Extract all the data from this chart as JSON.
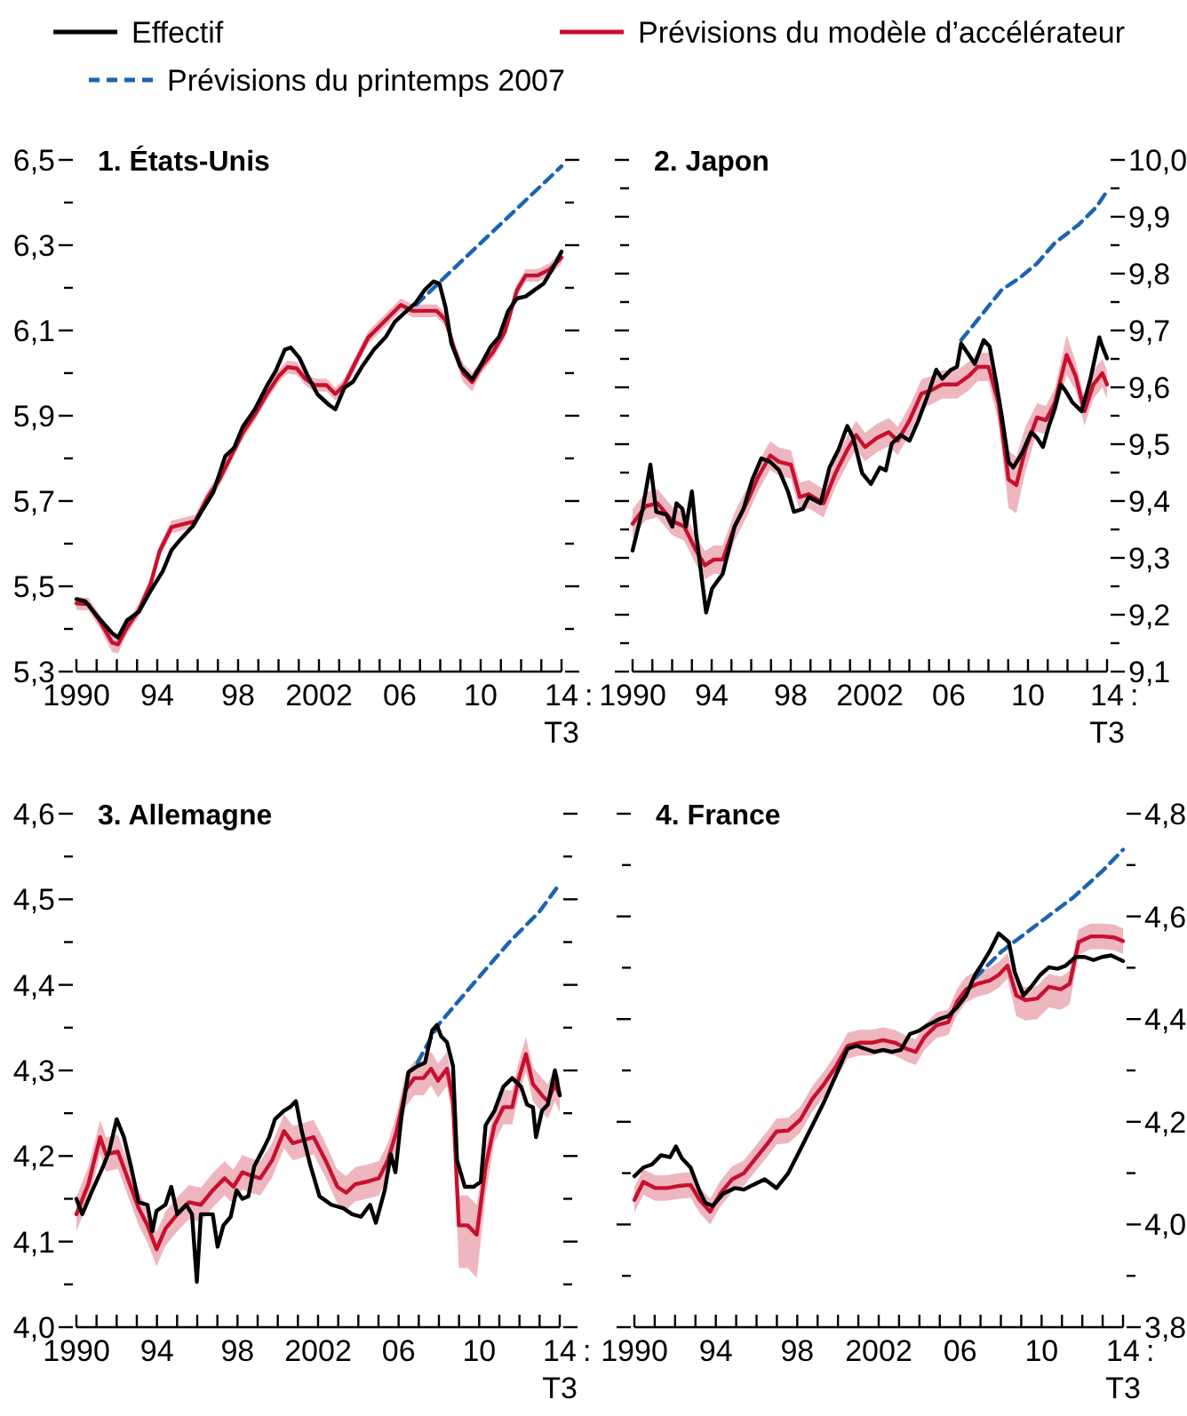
{
  "chart_data": [
    {
      "type": "line",
      "title": "1. États-Unis",
      "legend": "top",
      "annotations": [
        "T3",
        ":"
      ],
      "xlim": [
        1990,
        2014
      ],
      "xticks": [
        {
          "value": 1990,
          "label": "1990"
        },
        {
          "value": 1991,
          "label": null
        },
        {
          "value": 1992,
          "label": null
        },
        {
          "value": 1993,
          "label": null
        },
        {
          "value": 1994,
          "label": "94"
        },
        {
          "value": 1995,
          "label": null
        },
        {
          "value": 1996,
          "label": null
        },
        {
          "value": 1997,
          "label": null
        },
        {
          "value": 1998,
          "label": "98"
        },
        {
          "value": 1999,
          "label": null
        },
        {
          "value": 2000,
          "label": null
        },
        {
          "value": 2001,
          "label": null
        },
        {
          "value": 2002,
          "label": "2002"
        },
        {
          "value": 2003,
          "label": null
        },
        {
          "value": 2004,
          "label": null
        },
        {
          "value": 2005,
          "label": null
        },
        {
          "value": 2006,
          "label": "06"
        },
        {
          "value": 2007,
          "label": null
        },
        {
          "value": 2008,
          "label": null
        },
        {
          "value": 2009,
          "label": null
        },
        {
          "value": 2010,
          "label": "10"
        },
        {
          "value": 2011,
          "label": null
        },
        {
          "value": 2012,
          "label": null
        },
        {
          "value": 2013,
          "label": null
        },
        {
          "value": 2014,
          "label": "14"
        }
      ],
      "ylim": [
        5.3,
        6.5
      ],
      "yticks": [
        {
          "value": 5.3,
          "label": "5,3"
        },
        {
          "value": 5.4,
          "label": null
        },
        {
          "value": 5.5,
          "label": "5,5"
        },
        {
          "value": 5.6,
          "label": null
        },
        {
          "value": 5.7,
          "label": "5,7"
        },
        {
          "value": 5.8,
          "label": null
        },
        {
          "value": 5.9,
          "label": "5,9"
        },
        {
          "value": 6.0,
          "label": null
        },
        {
          "value": 6.1,
          "label": "6,1"
        },
        {
          "value": 6.2,
          "label": null
        },
        {
          "value": 6.3,
          "label": "6,3"
        },
        {
          "value": 6.4,
          "label": null
        },
        {
          "value": 6.5,
          "label": "6,5"
        }
      ],
      "series": [
        {
          "name": "Effectif",
          "color": "#000000",
          "line_style": "solid",
          "x": [
            1990,
            1990.44,
            1991.03,
            1991.77,
            1992.06,
            1992.5,
            1993.09,
            1993.68,
            1994.27,
            1994.71,
            1995.15,
            1995.74,
            1996.18,
            1996.77,
            1997.36,
            1997.8,
            1998.24,
            1998.83,
            1999.42,
            1999.86,
            2000.31,
            2000.6,
            2001.04,
            2001.48,
            2001.93,
            2002.51,
            2002.81,
            2003.25,
            2003.69,
            2004.13,
            2004.72,
            2005.31,
            2005.75,
            2006.2,
            2006.79,
            2007.23,
            2007.67,
            2007.96,
            2008.26,
            2008.55,
            2008.99,
            2009.58,
            2010.02,
            2010.47,
            2010.91,
            2011.35,
            2011.79,
            2012.23,
            2012.67,
            2013.12,
            2013.56,
            2014
          ],
          "values": [
            5.47,
            5.465,
            5.43,
            5.39,
            5.38,
            5.42,
            5.44,
            5.49,
            5.535,
            5.585,
            5.61,
            5.64,
            5.675,
            5.72,
            5.805,
            5.825,
            5.875,
            5.915,
            5.97,
            6.005,
            6.055,
            6.06,
            6.035,
            5.99,
            5.95,
            5.925,
            5.915,
            5.965,
            5.98,
            6.015,
            6.055,
            6.085,
            6.12,
            6.14,
            6.165,
            6.195,
            6.215,
            6.21,
            6.155,
            6.07,
            6.015,
            5.985,
            6.02,
            6.06,
            6.085,
            6.145,
            6.175,
            6.18,
            6.195,
            6.21,
            6.245,
            6.285
          ]
        },
        {
          "name": "Prévisions du modèle d’accélérateur",
          "color": "#c8102e",
          "line_style": "solid",
          "x": [
            1990,
            1990.59,
            1991.18,
            1991.77,
            1992.06,
            1992.5,
            1993.09,
            1993.68,
            1994.12,
            1994.71,
            1995.3,
            1995.89,
            1996.48,
            1997.07,
            1997.66,
            1998.24,
            1998.83,
            1999.42,
            2000.01,
            2000.45,
            2000.9,
            2001.34,
            2001.78,
            2002.37,
            2002.81,
            2003.25,
            2003.84,
            2004.43,
            2005.02,
            2005.61,
            2006.05,
            2006.64,
            2007.23,
            2007.82,
            2008.26,
            2008.7,
            2009.14,
            2009.58,
            2010.02,
            2010.61,
            2011.2,
            2011.79,
            2012.23,
            2012.82,
            2013.41,
            2014
          ],
          "values": [
            5.46,
            5.458,
            5.417,
            5.368,
            5.364,
            5.403,
            5.444,
            5.507,
            5.583,
            5.639,
            5.646,
            5.653,
            5.708,
            5.75,
            5.806,
            5.861,
            5.903,
            5.951,
            5.993,
            6.014,
            6.011,
            5.986,
            5.972,
            5.972,
            5.951,
            5.972,
            6.028,
            6.083,
            6.111,
            6.139,
            6.16,
            6.146,
            6.146,
            6.146,
            6.125,
            6.056,
            6.0,
            5.979,
            6.014,
            6.049,
            6.097,
            6.194,
            6.229,
            6.229,
            6.243,
            6.271
          ],
          "lower": [
            5.445,
            5.443,
            5.4,
            5.346,
            5.342,
            5.388,
            5.429,
            5.492,
            5.568,
            5.624,
            5.631,
            5.638,
            5.693,
            5.735,
            5.791,
            5.846,
            5.888,
            5.936,
            5.978,
            5.999,
            5.996,
            5.971,
            5.957,
            5.957,
            5.936,
            5.957,
            6.013,
            6.068,
            6.096,
            6.124,
            6.145,
            6.131,
            6.131,
            6.131,
            6.11,
            6.041,
            5.978,
            5.957,
            5.999,
            6.034,
            6.082,
            6.179,
            6.214,
            6.214,
            6.228,
            6.256
          ],
          "upper": [
            5.475,
            5.473,
            5.432,
            5.39,
            5.386,
            5.418,
            5.459,
            5.522,
            5.598,
            5.654,
            5.661,
            5.668,
            5.723,
            5.765,
            5.821,
            5.876,
            5.918,
            5.966,
            6.008,
            6.029,
            6.026,
            6.001,
            5.987,
            5.987,
            5.966,
            5.987,
            6.043,
            6.098,
            6.126,
            6.154,
            6.175,
            6.161,
            6.161,
            6.161,
            6.14,
            6.071,
            6.022,
            6.001,
            6.029,
            6.064,
            6.112,
            6.209,
            6.244,
            6.244,
            6.258,
            6.286
          ]
        },
        {
          "name": "Prévisions du printemps 2007",
          "color": "#1a64b4",
          "line_style": "dashed",
          "x": [
            2006.8,
            2009,
            2011,
            2013,
            2014
          ],
          "values": [
            6.16,
            6.26,
            6.35,
            6.44,
            6.485
          ]
        }
      ]
    },
    {
      "type": "line",
      "title": "2. Japon",
      "annotations": [
        "T3",
        ":"
      ],
      "xlim": [
        1990,
        2014
      ],
      "xticks": [
        {
          "value": 1990,
          "label": "1990"
        },
        {
          "value": 1991,
          "label": null
        },
        {
          "value": 1992,
          "label": null
        },
        {
          "value": 1993,
          "label": null
        },
        {
          "value": 1994,
          "label": "94"
        },
        {
          "value": 1995,
          "label": null
        },
        {
          "value": 1996,
          "label": null
        },
        {
          "value": 1997,
          "label": null
        },
        {
          "value": 1998,
          "label": "98"
        },
        {
          "value": 1999,
          "label": null
        },
        {
          "value": 2000,
          "label": null
        },
        {
          "value": 2001,
          "label": null
        },
        {
          "value": 2002,
          "label": "2002"
        },
        {
          "value": 2003,
          "label": null
        },
        {
          "value": 2004,
          "label": null
        },
        {
          "value": 2005,
          "label": null
        },
        {
          "value": 2006,
          "label": "06"
        },
        {
          "value": 2007,
          "label": null
        },
        {
          "value": 2008,
          "label": null
        },
        {
          "value": 2009,
          "label": null
        },
        {
          "value": 2010,
          "label": "10"
        },
        {
          "value": 2011,
          "label": null
        },
        {
          "value": 2012,
          "label": null
        },
        {
          "value": 2013,
          "label": null
        },
        {
          "value": 2014,
          "label": "14"
        }
      ],
      "y2lim": [
        9.1,
        10.0
      ],
      "y2ticks": [
        {
          "value": 9.1,
          "label": "9,1"
        },
        {
          "value": 9.15,
          "label": null
        },
        {
          "value": 9.2,
          "label": "9,2"
        },
        {
          "value": 9.25,
          "label": null
        },
        {
          "value": 9.3,
          "label": "9,3"
        },
        {
          "value": 9.35,
          "label": null
        },
        {
          "value": 9.4,
          "label": "9,4"
        },
        {
          "value": 9.45,
          "label": null
        },
        {
          "value": 9.5,
          "label": "9,5"
        },
        {
          "value": 9.55,
          "label": null
        },
        {
          "value": 9.6,
          "label": "9,6"
        },
        {
          "value": 9.65,
          "label": null
        },
        {
          "value": 9.7,
          "label": "9,7"
        },
        {
          "value": 9.75,
          "label": null
        },
        {
          "value": 9.8,
          "label": "9,8"
        },
        {
          "value": 9.85,
          "label": null
        },
        {
          "value": 9.9,
          "label": "9,9"
        },
        {
          "value": 9.95,
          "label": null
        },
        {
          "value": 10.0,
          "label": "10,0"
        }
      ],
      "series": [
        {
          "color": "#000000",
          "axis": "y2",
          "line_style": "solid",
          "x": [
            1990,
            1990.51,
            1990.9,
            1991.2,
            1991.71,
            1992.01,
            1992.22,
            1992.52,
            1992.7,
            1993.0,
            1993.21,
            1993.51,
            1993.72,
            1994.02,
            1994.56,
            1995.16,
            1995.61,
            1996.06,
            1996.51,
            1996.96,
            1997.41,
            1997.86,
            1998.16,
            1998.61,
            1998.91,
            1999.51,
            1999.96,
            2000.41,
            2000.86,
            2001.16,
            2001.61,
            2002.06,
            2002.51,
            2002.81,
            2003.11,
            2003.56,
            2004.01,
            2004.46,
            2004.91,
            2005.36,
            2005.66,
            2006.11,
            2006.41,
            2006.62,
            2007.01,
            2007.31,
            2007.76,
            2008.06,
            2008.36,
            2008.66,
            2009.02,
            2009.26,
            2009.71,
            2010.16,
            2010.46,
            2010.76,
            2011.06,
            2011.36,
            2011.66,
            2011.9,
            2012.26,
            2012.71,
            2013.16,
            2013.61,
            2013.76,
            2014
          ],
          "values": [
            9.313,
            9.386,
            9.464,
            9.381,
            9.376,
            9.355,
            9.396,
            9.386,
            9.355,
            9.417,
            9.344,
            9.261,
            9.204,
            9.246,
            9.272,
            9.355,
            9.386,
            9.438,
            9.475,
            9.469,
            9.454,
            9.417,
            9.381,
            9.386,
            9.407,
            9.396,
            9.459,
            9.49,
            9.532,
            9.511,
            9.449,
            9.43,
            9.459,
            9.454,
            9.501,
            9.516,
            9.506,
            9.542,
            9.584,
            9.631,
            9.615,
            9.631,
            9.636,
            9.677,
            9.657,
            9.641,
            9.683,
            9.672,
            9.615,
            9.553,
            9.469,
            9.459,
            9.485,
            9.521,
            9.511,
            9.495,
            9.532,
            9.563,
            9.605,
            9.594,
            9.573,
            9.558,
            9.615,
            9.688,
            9.672,
            9.651
          ]
        },
        {
          "color": "#c8102e",
          "axis": "y2",
          "line_style": "solid",
          "x": [
            1990,
            1990.66,
            1991.26,
            1992.01,
            1992.61,
            1993.21,
            1993.66,
            1994.11,
            1994.56,
            1995.16,
            1995.76,
            1996.36,
            1996.96,
            1997.41,
            1998.01,
            1998.46,
            1998.91,
            1999.66,
            2000.26,
            2000.86,
            2001.31,
            2001.76,
            2002.36,
            2002.96,
            2003.41,
            2004.01,
            2004.61,
            2005.06,
            2005.66,
            2006.41,
            2007.01,
            2007.46,
            2008.0,
            2008.51,
            2009.02,
            2009.41,
            2009.86,
            2010.46,
            2010.91,
            2011.36,
            2011.96,
            2012.41,
            2012.86,
            2013.31,
            2013.76,
            2014
          ],
          "values": [
            9.36,
            9.391,
            9.396,
            9.365,
            9.355,
            9.313,
            9.287,
            9.297,
            9.297,
            9.355,
            9.396,
            9.443,
            9.48,
            9.469,
            9.464,
            9.407,
            9.412,
            9.396,
            9.449,
            9.49,
            9.516,
            9.495,
            9.511,
            9.521,
            9.506,
            9.542,
            9.589,
            9.594,
            9.605,
            9.605,
            9.62,
            9.636,
            9.636,
            9.573,
            9.438,
            9.428,
            9.49,
            9.547,
            9.542,
            9.573,
            9.657,
            9.62,
            9.558,
            9.605,
            9.625,
            9.605
          ],
          "lower": [
            9.335,
            9.366,
            9.371,
            9.34,
            9.33,
            9.288,
            9.262,
            9.272,
            9.272,
            9.33,
            9.371,
            9.418,
            9.455,
            9.444,
            9.439,
            9.382,
            9.387,
            9.371,
            9.424,
            9.465,
            9.491,
            9.47,
            9.486,
            9.496,
            9.481,
            9.517,
            9.564,
            9.569,
            9.58,
            9.58,
            9.595,
            9.611,
            9.611,
            9.538,
            9.388,
            9.378,
            9.45,
            9.522,
            9.517,
            9.548,
            9.622,
            9.595,
            9.533,
            9.58,
            9.6,
            9.58
          ],
          "upper": [
            9.385,
            9.416,
            9.421,
            9.39,
            9.38,
            9.338,
            9.312,
            9.322,
            9.322,
            9.38,
            9.421,
            9.468,
            9.505,
            9.494,
            9.489,
            9.432,
            9.437,
            9.421,
            9.474,
            9.515,
            9.541,
            9.52,
            9.536,
            9.546,
            9.531,
            9.567,
            9.614,
            9.619,
            9.63,
            9.63,
            9.645,
            9.661,
            9.661,
            9.608,
            9.488,
            9.478,
            9.53,
            9.572,
            9.567,
            9.598,
            9.692,
            9.645,
            9.583,
            9.63,
            9.65,
            9.63
          ]
        },
        {
          "color": "#1a64b4",
          "axis": "y2",
          "line_style": "dashed",
          "x": [
            2006.62,
            2007.46,
            2008.66,
            2009.56,
            2010.46,
            2011.36,
            2012.56,
            2013.46,
            2014
          ],
          "values": [
            9.683,
            9.719,
            9.771,
            9.792,
            9.818,
            9.854,
            9.886,
            9.917,
            9.945
          ]
        }
      ]
    },
    {
      "type": "line",
      "title": "3. Allemagne",
      "annotations": [
        "T3",
        ":"
      ],
      "xlim": [
        1990,
        2014
      ],
      "xticks": [
        {
          "value": 1990,
          "label": "1990"
        },
        {
          "value": 1991,
          "label": null
        },
        {
          "value": 1992,
          "label": null
        },
        {
          "value": 1993,
          "label": null
        },
        {
          "value": 1994,
          "label": "94"
        },
        {
          "value": 1995,
          "label": null
        },
        {
          "value": 1996,
          "label": null
        },
        {
          "value": 1997,
          "label": null
        },
        {
          "value": 1998,
          "label": "98"
        },
        {
          "value": 1999,
          "label": null
        },
        {
          "value": 2000,
          "label": null
        },
        {
          "value": 2001,
          "label": null
        },
        {
          "value": 2002,
          "label": "2002"
        },
        {
          "value": 2003,
          "label": null
        },
        {
          "value": 2004,
          "label": null
        },
        {
          "value": 2005,
          "label": null
        },
        {
          "value": 2006,
          "label": "06"
        },
        {
          "value": 2007,
          "label": null
        },
        {
          "value": 2008,
          "label": null
        },
        {
          "value": 2009,
          "label": null
        },
        {
          "value": 2010,
          "label": "10"
        },
        {
          "value": 2011,
          "label": null
        },
        {
          "value": 2012,
          "label": null
        },
        {
          "value": 2013,
          "label": null
        },
        {
          "value": 2014,
          "label": "14"
        }
      ],
      "ylim": [
        4.0,
        4.6
      ],
      "yticks": [
        {
          "value": 4.0,
          "label": "4,0"
        },
        {
          "value": 4.05,
          "label": null
        },
        {
          "value": 4.1,
          "label": "4,1"
        },
        {
          "value": 4.15,
          "label": null
        },
        {
          "value": 4.2,
          "label": "4,2"
        },
        {
          "value": 4.25,
          "label": null
        },
        {
          "value": 4.3,
          "label": "4,3"
        },
        {
          "value": 4.35,
          "label": null
        },
        {
          "value": 4.4,
          "label": "4,4"
        },
        {
          "value": 4.45,
          "label": null
        },
        {
          "value": 4.5,
          "label": "4,5"
        },
        {
          "value": 4.55,
          "label": null
        },
        {
          "value": 4.6,
          "label": "4,6"
        }
      ],
      "series": [
        {
          "color": "#000000",
          "line_style": "solid",
          "x": [
            1990,
            1990.29,
            1990.74,
            1991.33,
            1991.62,
            1992.0,
            1992.36,
            1992.71,
            1993.09,
            1993.53,
            1993.77,
            1993.98,
            1994.42,
            1994.71,
            1995.01,
            1995.45,
            1995.74,
            1995.98,
            1996.18,
            1996.77,
            1997.01,
            1997.3,
            1997.66,
            1997.95,
            1998.24,
            1998.54,
            1998.83,
            1999.28,
            1999.57,
            1999.86,
            2000.31,
            2000.6,
            2000.9,
            2001.19,
            2001.63,
            2002.07,
            2002.66,
            2003.25,
            2003.69,
            2004.13,
            2004.58,
            2004.87,
            2005.31,
            2005.61,
            2005.84,
            2006.14,
            2006.49,
            2006.93,
            2007.31,
            2007.67,
            2007.9,
            2008.11,
            2008.4,
            2008.7,
            2008.9,
            2009.29,
            2009.73,
            2010.08,
            2010.32,
            2010.76,
            2011.2,
            2011.64,
            2012.08,
            2012.38,
            2012.67,
            2012.82,
            2013.12,
            2013.41,
            2013.76,
            2014
          ],
          "values": [
            4.15,
            4.132,
            4.157,
            4.188,
            4.205,
            4.243,
            4.222,
            4.188,
            4.146,
            4.143,
            4.112,
            4.136,
            4.143,
            4.164,
            4.132,
            4.143,
            4.132,
            4.053,
            4.132,
            4.132,
            4.094,
            4.119,
            4.129,
            4.16,
            4.15,
            4.153,
            4.188,
            4.208,
            4.222,
            4.243,
            4.253,
            4.257,
            4.264,
            4.229,
            4.188,
            4.153,
            4.143,
            4.139,
            4.132,
            4.129,
            4.143,
            4.122,
            4.16,
            4.202,
            4.181,
            4.246,
            4.298,
            4.305,
            4.309,
            4.347,
            4.353,
            4.34,
            4.333,
            4.305,
            4.195,
            4.164,
            4.164,
            4.17,
            4.236,
            4.253,
            4.281,
            4.291,
            4.281,
            4.26,
            4.257,
            4.222,
            4.253,
            4.26,
            4.3,
            4.271
          ]
        },
        {
          "color": "#c8102e",
          "line_style": "solid",
          "x": [
            1990,
            1990.59,
            1991.18,
            1991.47,
            1992.06,
            1992.5,
            1993.09,
            1993.53,
            1993.98,
            1994.42,
            1995.01,
            1995.59,
            1996.18,
            1996.77,
            1997.36,
            1997.8,
            1998.24,
            1998.69,
            1999.13,
            1999.72,
            2000.31,
            2000.75,
            2001.19,
            2001.78,
            2002.37,
            2002.96,
            2003.4,
            2003.84,
            2004.43,
            2005.02,
            2005.46,
            2005.9,
            2006.34,
            2006.78,
            2007.23,
            2007.61,
            2007.96,
            2008.4,
            2008.7,
            2008.99,
            2009.43,
            2009.88,
            2010.32,
            2010.76,
            2011.2,
            2011.64,
            2011.94,
            2012.32,
            2012.67,
            2013.12,
            2013.41,
            2013.76,
            2014
          ],
          "values": [
            4.132,
            4.167,
            4.222,
            4.202,
            4.205,
            4.177,
            4.139,
            4.119,
            4.091,
            4.115,
            4.132,
            4.146,
            4.143,
            4.16,
            4.174,
            4.164,
            4.181,
            4.177,
            4.174,
            4.195,
            4.229,
            4.215,
            4.218,
            4.222,
            4.195,
            4.164,
            4.157,
            4.167,
            4.17,
            4.174,
            4.195,
            4.229,
            4.277,
            4.291,
            4.291,
            4.302,
            4.288,
            4.302,
            4.264,
            4.119,
            4.119,
            4.108,
            4.188,
            4.236,
            4.257,
            4.257,
            4.288,
            4.319,
            4.284,
            4.271,
            4.264,
            4.284,
            4.271
          ],
          "lower": [
            4.112,
            4.147,
            4.202,
            4.182,
            4.185,
            4.157,
            4.119,
            4.099,
            4.071,
            4.095,
            4.112,
            4.126,
            4.123,
            4.14,
            4.154,
            4.144,
            4.161,
            4.157,
            4.154,
            4.175,
            4.209,
            4.195,
            4.198,
            4.202,
            4.175,
            4.144,
            4.137,
            4.147,
            4.15,
            4.154,
            4.175,
            4.209,
            4.257,
            4.271,
            4.271,
            4.282,
            4.268,
            4.282,
            4.239,
            4.069,
            4.069,
            4.058,
            4.153,
            4.216,
            4.237,
            4.237,
            4.268,
            4.299,
            4.264,
            4.251,
            4.244,
            4.264,
            4.251
          ],
          "upper": [
            4.152,
            4.187,
            4.242,
            4.222,
            4.225,
            4.197,
            4.159,
            4.139,
            4.111,
            4.135,
            4.152,
            4.166,
            4.163,
            4.18,
            4.194,
            4.184,
            4.201,
            4.197,
            4.194,
            4.215,
            4.249,
            4.235,
            4.238,
            4.242,
            4.215,
            4.184,
            4.177,
            4.187,
            4.19,
            4.194,
            4.215,
            4.249,
            4.297,
            4.311,
            4.311,
            4.322,
            4.308,
            4.322,
            4.284,
            4.154,
            4.154,
            4.143,
            4.208,
            4.256,
            4.277,
            4.277,
            4.308,
            4.339,
            4.304,
            4.291,
            4.284,
            4.304,
            4.291
          ]
        },
        {
          "color": "#1a64b4",
          "line_style": "dashed",
          "x": [
            2006.93,
            2007.96,
            2009.73,
            2011.5,
            2012.97,
            2014
          ],
          "values": [
            4.309,
            4.353,
            4.402,
            4.45,
            4.485,
            4.518
          ]
        }
      ]
    },
    {
      "type": "line",
      "title": "4. France",
      "annotations": [
        "T3",
        ":"
      ],
      "xlim": [
        1990,
        2014
      ],
      "xticks": [
        {
          "value": 1990,
          "label": "1990"
        },
        {
          "value": 1991,
          "label": null
        },
        {
          "value": 1992,
          "label": null
        },
        {
          "value": 1993,
          "label": null
        },
        {
          "value": 1994,
          "label": "94"
        },
        {
          "value": 1995,
          "label": null
        },
        {
          "value": 1996,
          "label": null
        },
        {
          "value": 1997,
          "label": null
        },
        {
          "value": 1998,
          "label": "98"
        },
        {
          "value": 1999,
          "label": null
        },
        {
          "value": 2000,
          "label": null
        },
        {
          "value": 2001,
          "label": null
        },
        {
          "value": 2002,
          "label": "2002"
        },
        {
          "value": 2003,
          "label": null
        },
        {
          "value": 2004,
          "label": null
        },
        {
          "value": 2005,
          "label": null
        },
        {
          "value": 2006,
          "label": "06"
        },
        {
          "value": 2007,
          "label": null
        },
        {
          "value": 2008,
          "label": null
        },
        {
          "value": 2009,
          "label": null
        },
        {
          "value": 2010,
          "label": "10"
        },
        {
          "value": 2011,
          "label": null
        },
        {
          "value": 2012,
          "label": null
        },
        {
          "value": 2013,
          "label": null
        },
        {
          "value": 2014,
          "label": "14"
        }
      ],
      "y2lim": [
        3.8,
        4.8
      ],
      "y2ticks": [
        {
          "value": 3.8,
          "label": "3,8"
        },
        {
          "value": 3.9,
          "label": null
        },
        {
          "value": 4.0,
          "label": "4,0"
        },
        {
          "value": 4.1,
          "label": null
        },
        {
          "value": 4.2,
          "label": "4,2"
        },
        {
          "value": 4.3,
          "label": null
        },
        {
          "value": 4.4,
          "label": "4,4"
        },
        {
          "value": 4.5,
          "label": null
        },
        {
          "value": 4.6,
          "label": "4,6"
        },
        {
          "value": 4.7,
          "label": null
        },
        {
          "value": 4.8,
          "label": "4,8"
        }
      ],
      "series": [
        {
          "color": "#000000",
          "axis": "y2",
          "line_style": "solid",
          "x": [
            1990,
            1990.44,
            1990.87,
            1991.31,
            1991.75,
            1992.04,
            1992.33,
            1992.76,
            1993.2,
            1993.49,
            1993.84,
            1994.36,
            1994.95,
            1995.38,
            1995.82,
            1996.4,
            1996.98,
            1997.56,
            1998.15,
            1998.73,
            1999.31,
            1999.89,
            2000.47,
            2000.91,
            2001.35,
            2001.78,
            2002.22,
            2002.65,
            2003.09,
            2003.53,
            2003.96,
            2004.4,
            2004.98,
            2005.42,
            2005.85,
            2006.29,
            2006.73,
            2007.02,
            2007.45,
            2007.89,
            2008.39,
            2008.68,
            2009.11,
            2009.49,
            2009.93,
            2010.36,
            2010.8,
            2011.18,
            2011.67,
            2012.11,
            2012.55,
            2012.98,
            2013.42,
            2014
          ],
          "values": [
            4.094,
            4.111,
            4.117,
            4.135,
            4.131,
            4.152,
            4.129,
            4.111,
            4.065,
            4.042,
            4.036,
            4.06,
            4.071,
            4.068,
            4.077,
            4.088,
            4.071,
            4.1,
            4.146,
            4.192,
            4.238,
            4.29,
            4.342,
            4.348,
            4.342,
            4.336,
            4.34,
            4.336,
            4.34,
            4.371,
            4.377,
            4.388,
            4.4,
            4.406,
            4.423,
            4.446,
            4.486,
            4.504,
            4.532,
            4.567,
            4.55,
            4.492,
            4.446,
            4.463,
            4.486,
            4.501,
            4.498,
            4.504,
            4.521,
            4.521,
            4.515,
            4.521,
            4.524,
            4.513
          ]
        },
        {
          "color": "#c8102e",
          "axis": "y2",
          "line_style": "solid",
          "x": [
            1990,
            1990.44,
            1991.02,
            1991.6,
            1992.18,
            1992.76,
            1993.2,
            1993.72,
            1994.22,
            1994.8,
            1995.38,
            1995.96,
            1996.55,
            1996.98,
            1997.56,
            1998.15,
            1998.73,
            1999.31,
            1999.89,
            2000.47,
            2001.05,
            2001.64,
            2002.22,
            2002.8,
            2003.38,
            2003.82,
            2004.25,
            2004.84,
            2005.42,
            2005.85,
            2006.29,
            2006.87,
            2007.45,
            2007.89,
            2008.33,
            2008.76,
            2009.2,
            2009.78,
            2010.36,
            2010.95,
            2011.38,
            2011.82,
            2012.4,
            2012.98,
            2013.56,
            2014
          ],
          "values": [
            4.048,
            4.083,
            4.071,
            4.071,
            4.075,
            4.077,
            4.048,
            4.025,
            4.06,
            4.088,
            4.1,
            4.129,
            4.158,
            4.181,
            4.183,
            4.204,
            4.244,
            4.273,
            4.307,
            4.348,
            4.354,
            4.354,
            4.359,
            4.354,
            4.342,
            4.336,
            4.365,
            4.388,
            4.394,
            4.434,
            4.458,
            4.469,
            4.475,
            4.486,
            4.504,
            4.446,
            4.437,
            4.44,
            4.463,
            4.458,
            4.469,
            4.55,
            4.561,
            4.561,
            4.559,
            4.552
          ],
          "lower": [
            4.023,
            4.058,
            4.046,
            4.046,
            4.05,
            4.052,
            4.023,
            4.0,
            4.035,
            4.063,
            4.075,
            4.104,
            4.133,
            4.156,
            4.158,
            4.179,
            4.219,
            4.248,
            4.282,
            4.323,
            4.329,
            4.329,
            4.334,
            4.329,
            4.317,
            4.311,
            4.34,
            4.363,
            4.369,
            4.409,
            4.433,
            4.444,
            4.45,
            4.461,
            4.479,
            4.406,
            4.397,
            4.4,
            4.423,
            4.418,
            4.429,
            4.525,
            4.536,
            4.536,
            4.534,
            4.527
          ],
          "upper": [
            4.073,
            4.108,
            4.096,
            4.096,
            4.1,
            4.102,
            4.073,
            4.05,
            4.085,
            4.113,
            4.125,
            4.154,
            4.183,
            4.206,
            4.208,
            4.229,
            4.269,
            4.298,
            4.332,
            4.373,
            4.379,
            4.379,
            4.384,
            4.379,
            4.367,
            4.361,
            4.39,
            4.413,
            4.419,
            4.459,
            4.483,
            4.494,
            4.5,
            4.511,
            4.529,
            4.471,
            4.462,
            4.465,
            4.488,
            4.483,
            4.494,
            4.575,
            4.586,
            4.586,
            4.584,
            4.577
          ]
        },
        {
          "color": "#1a64b4",
          "axis": "y2",
          "line_style": "dashed",
          "x": [
            2006.73,
            2008.04,
            2009.78,
            2011.53,
            2012.98,
            2014
          ],
          "values": [
            4.48,
            4.532,
            4.584,
            4.636,
            4.688,
            4.73
          ]
        }
      ]
    }
  ]
}
